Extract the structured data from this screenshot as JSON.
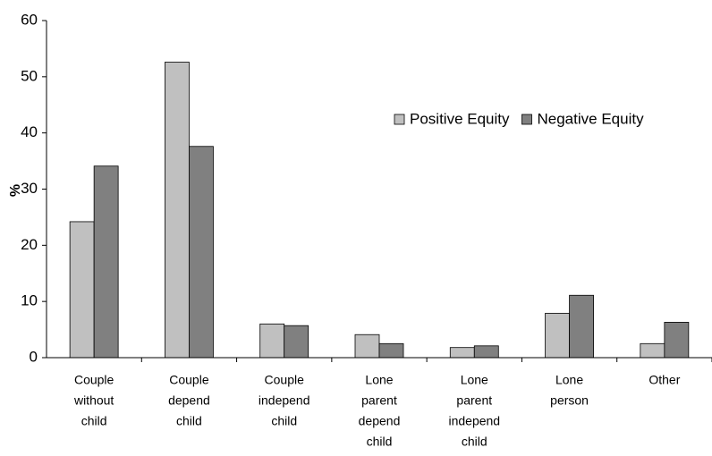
{
  "chart_data": {
    "type": "bar",
    "y_label": "%",
    "categories": [
      [
        "Couple",
        "without",
        "child"
      ],
      [
        "Couple",
        "depend",
        "child"
      ],
      [
        "Couple",
        "independ",
        "child"
      ],
      [
        "Lone",
        "parent",
        "depend",
        "child"
      ],
      [
        "Lone",
        "parent",
        "independ",
        "child"
      ],
      [
        "Lone",
        "person"
      ],
      [
        "Other"
      ]
    ],
    "series": [
      {
        "name": "Positive Equity",
        "color": "#c0c0c0",
        "values": [
          24.2,
          52.6,
          6.0,
          4.1,
          1.8,
          7.9,
          2.5
        ]
      },
      {
        "name": "Negative Equity",
        "color": "#808080",
        "values": [
          34.1,
          37.6,
          5.7,
          2.5,
          2.1,
          11.1,
          6.3
        ]
      }
    ],
    "ylim": [
      0,
      60
    ],
    "yticks": [
      0,
      10,
      20,
      30,
      40,
      50,
      60
    ],
    "grid": false,
    "legend": "upper right"
  }
}
